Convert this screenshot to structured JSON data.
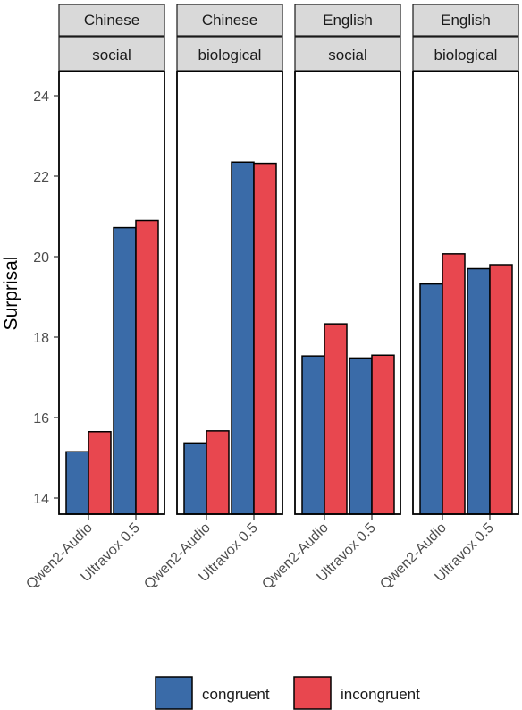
{
  "chart_data": {
    "type": "bar",
    "ylabel": "Surprisal",
    "ylim": [
      13.6,
      24.6
    ],
    "yticks": [
      14,
      16,
      18,
      20,
      22,
      24
    ],
    "grid": false,
    "legend_position": "bottom",
    "categories": [
      "Qwen2-Audio",
      "Ultravox 0.5"
    ],
    "series_names": [
      "congruent",
      "incongruent"
    ],
    "colors": {
      "congruent": "#3a6ba8",
      "incongruent": "#e8474f"
    },
    "facets": [
      {
        "row1": "Chinese",
        "row2": "social",
        "values": {
          "congruent": [
            15.15,
            20.72
          ],
          "incongruent": [
            15.65,
            20.9
          ]
        }
      },
      {
        "row1": "Chinese",
        "row2": "biological",
        "values": {
          "congruent": [
            15.37,
            22.35
          ],
          "incongruent": [
            15.67,
            22.32
          ]
        }
      },
      {
        "row1": "English",
        "row2": "social",
        "values": {
          "congruent": [
            17.53,
            17.48
          ],
          "incongruent": [
            18.33,
            17.55
          ]
        }
      },
      {
        "row1": "English",
        "row2": "biological",
        "values": {
          "congruent": [
            19.32,
            19.7
          ],
          "incongruent": [
            20.07,
            19.8
          ]
        }
      }
    ]
  }
}
